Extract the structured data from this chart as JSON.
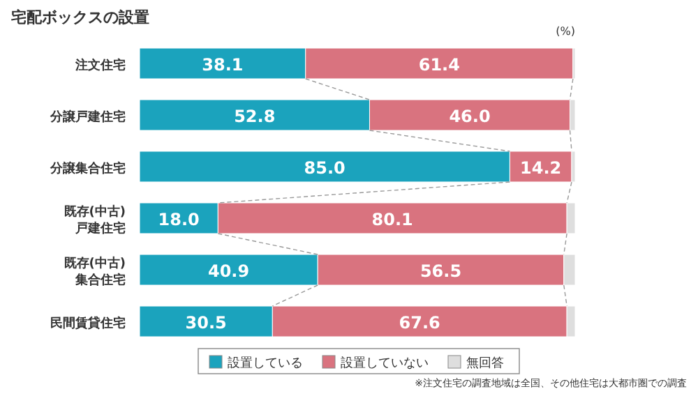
{
  "chart_data": {
    "type": "bar",
    "orientation": "horizontal",
    "stacked": true,
    "title": "宅配ボックスの設置",
    "categories": [
      "注文住宅",
      "分譲戸建住宅",
      "分譲集合住宅",
      "既存(中古)\n戸建住宅",
      "既存(中古)\n集合住宅",
      "民間賃貸住宅"
    ],
    "xlim": [
      0,
      100
    ],
    "legend": "bottom",
    "series": [
      {
        "name": "設置している",
        "color": "#1ba3bd",
        "values": [
          38.1,
          52.8,
          85.0,
          18.0,
          40.9,
          30.5
        ],
        "value_labels": [
          "38.1",
          "52.8",
          "85.0",
          "18.0",
          "40.9",
          "30.5"
        ]
      },
      {
        "name": "設置していない",
        "color": "#d9737f",
        "values": [
          61.4,
          46.0,
          14.2,
          80.1,
          56.5,
          67.6
        ],
        "value_labels": [
          "61.4",
          "46.0",
          "14.2",
          "80.1",
          "56.5",
          "67.6"
        ]
      },
      {
        "name": "無回答",
        "color": "#dedede",
        "values": [
          0.5,
          1.2,
          0.8,
          1.9,
          2.6,
          1.9
        ]
      }
    ],
    "annotations": [
      "(%)",
      "※注文住宅の調査地域は全国、その他住宅は大都市圏での調査"
    ]
  }
}
